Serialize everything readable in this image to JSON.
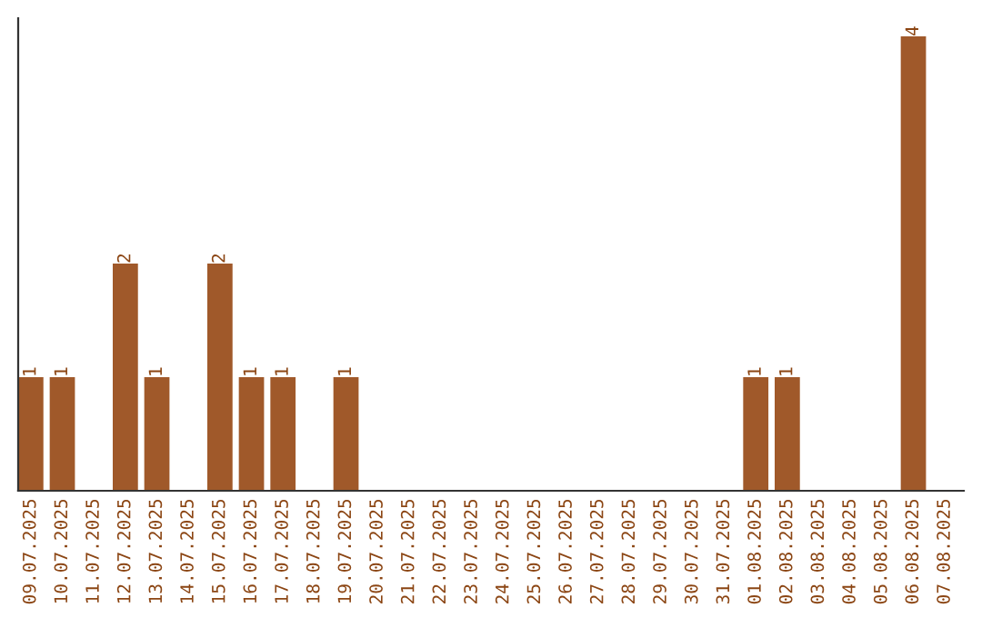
{
  "chart_data": {
    "type": "bar",
    "categories": [
      "09.07.2025",
      "10.07.2025",
      "11.07.2025",
      "12.07.2025",
      "13.07.2025",
      "14.07.2025",
      "15.07.2025",
      "16.07.2025",
      "17.07.2025",
      "18.07.2025",
      "19.07.2025",
      "20.07.2025",
      "21.07.2025",
      "22.07.2025",
      "23.07.2025",
      "24.07.2025",
      "25.07.2025",
      "26.07.2025",
      "27.07.2025",
      "28.07.2025",
      "29.07.2025",
      "30.07.2025",
      "31.07.2025",
      "01.08.2025",
      "02.08.2025",
      "03.08.2025",
      "04.08.2025",
      "05.08.2025",
      "06.08.2025",
      "07.08.2025"
    ],
    "values": [
      1,
      1,
      0,
      2,
      1,
      0,
      2,
      1,
      1,
      0,
      1,
      0,
      0,
      0,
      0,
      0,
      0,
      0,
      0,
      0,
      0,
      0,
      0,
      1,
      1,
      0,
      0,
      0,
      4,
      0
    ],
    "value_labels": [
      "1",
      "1",
      null,
      "2",
      "1",
      null,
      "2",
      "1",
      "1",
      null,
      "1",
      null,
      null,
      null,
      null,
      null,
      null,
      null,
      null,
      null,
      null,
      null,
      null,
      "1",
      "1",
      null,
      null,
      null,
      "4",
      null
    ],
    "color": "#a0592a",
    "ylim": [
      0,
      4.16
    ],
    "tick_labels": "x",
    "grid": false,
    "legend": false
  }
}
